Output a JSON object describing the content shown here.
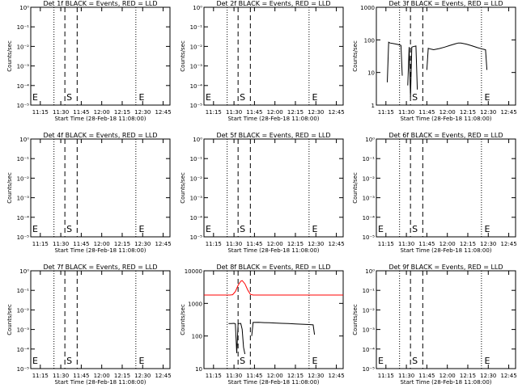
{
  "xticks": [
    "11:15",
    "11:30",
    "11:45",
    "12:00",
    "12:15",
    "12:30",
    "12:45"
  ],
  "xlabel": "Start Time (28-Feb-18 11:08:00)",
  "ylabel": "Counts/sec",
  "chart_data": [
    {
      "type": "line",
      "title": "Det 1f BLACK = Events, RED = LLD",
      "yscale": "log",
      "ylim": [
        1,
        10000
      ],
      "xlim": [
        "11:08",
        "12:50"
      ],
      "yticks": [
        "10⁰",
        "10⁻¹",
        "10⁻²",
        "10⁻³",
        "10⁻⁴",
        "10⁻⁵"
      ],
      "markers": [
        {
          "label": "E",
          "time": "11:08"
        },
        {
          "label": "S",
          "time": "11:33"
        },
        {
          "label": "E",
          "time": "12:26"
        }
      ],
      "dotted": [
        "11:25",
        "12:25"
      ],
      "dashed": [
        "11:33",
        "11:42"
      ],
      "series": []
    },
    {
      "type": "line",
      "title": "Det 2f BLACK = Events, RED = LLD",
      "yscale": "log",
      "ylim": [
        1,
        10000
      ],
      "xlim": [
        "11:08",
        "12:50"
      ],
      "yticks": [
        "10⁰",
        "10⁻¹",
        "10⁻²",
        "10⁻³",
        "10⁻⁴",
        "10⁻⁵"
      ],
      "markers": [
        {
          "label": "E",
          "time": "11:08"
        },
        {
          "label": "S",
          "time": "11:33"
        },
        {
          "label": "E",
          "time": "12:26"
        }
      ],
      "dotted": [
        "11:25",
        "12:25"
      ],
      "dashed": [
        "11:33",
        "11:42"
      ],
      "series": []
    },
    {
      "type": "line",
      "title": "Det 3f BLACK = Events, RED = LLD",
      "yscale": "log",
      "ylim": [
        1,
        1000
      ],
      "xlim": [
        "11:08",
        "12:50"
      ],
      "yticks": [
        "1000",
        "100",
        "10",
        "1"
      ],
      "markers": [
        {
          "label": "S",
          "time": "11:33"
        },
        {
          "label": "E",
          "time": "12:26"
        }
      ],
      "dotted": [
        "11:25",
        "12:25"
      ],
      "dashed": [
        "11:33",
        "11:42"
      ],
      "series": [
        {
          "color": "#000000",
          "segments": [
            [
              [
                "11:16",
                5
              ],
              [
                "11:17",
                85
              ],
              [
                "11:18",
                80
              ],
              [
                "11:20",
                78
              ],
              [
                "11:22",
                75
              ],
              [
                "11:24",
                72
              ],
              [
                "11:26",
                68
              ],
              [
                "11:27",
                8
              ]
            ],
            [
              [
                "11:31",
                4
              ],
              [
                "11:32",
                60
              ],
              [
                "11:33",
                1.8
              ],
              [
                "11:34",
                60
              ],
              [
                "11:35",
                62
              ],
              [
                "11:37",
                65
              ],
              [
                "11:38",
                3
              ]
            ],
            [
              [
                "11:45",
                12
              ],
              [
                "11:46",
                55
              ],
              [
                "11:48",
                52
              ],
              [
                "11:50",
                50
              ],
              [
                "11:54",
                54
              ],
              [
                "11:58",
                60
              ],
              [
                "12:02",
                68
              ],
              [
                "12:06",
                76
              ],
              [
                "12:08",
                80
              ],
              [
                "12:10",
                80
              ],
              [
                "12:14",
                74
              ],
              [
                "12:18",
                66
              ],
              [
                "12:22",
                58
              ],
              [
                "12:26",
                52
              ],
              [
                "12:28",
                50
              ],
              [
                "12:29",
                12
              ]
            ]
          ]
        }
      ]
    },
    {
      "type": "line",
      "title": "Det 4f BLACK = Events, RED = LLD",
      "yscale": "log",
      "ylim": [
        1,
        10000
      ],
      "xlim": [
        "11:08",
        "12:50"
      ],
      "yticks": [
        "10⁰",
        "10⁻¹",
        "10⁻²",
        "10⁻³",
        "10⁻⁴",
        "10⁻⁵"
      ],
      "markers": [
        {
          "label": "E",
          "time": "11:08"
        },
        {
          "label": "S",
          "time": "11:33"
        },
        {
          "label": "E",
          "time": "12:26"
        }
      ],
      "dotted": [
        "11:25",
        "12:25"
      ],
      "dashed": [
        "11:33",
        "11:42"
      ],
      "series": []
    },
    {
      "type": "line",
      "title": "Det 5f BLACK = Events, RED = LLD",
      "yscale": "log",
      "ylim": [
        1,
        10000
      ],
      "xlim": [
        "11:08",
        "12:50"
      ],
      "yticks": [
        "10⁰",
        "10⁻¹",
        "10⁻²",
        "10⁻³",
        "10⁻⁴",
        "10⁻⁵"
      ],
      "markers": [
        {
          "label": "E",
          "time": "11:08"
        },
        {
          "label": "S",
          "time": "11:33"
        },
        {
          "label": "E",
          "time": "12:26"
        }
      ],
      "dotted": [
        "11:25",
        "12:25"
      ],
      "dashed": [
        "11:33",
        "11:42"
      ],
      "series": []
    },
    {
      "type": "line",
      "title": "Det 6f BLACK = Events, RED = LLD",
      "yscale": "log",
      "ylim": [
        1,
        10000
      ],
      "xlim": [
        "11:08",
        "12:50"
      ],
      "yticks": [
        "10⁰",
        "10⁻¹",
        "10⁻²",
        "10⁻³",
        "10⁻⁴",
        "10⁻⁵"
      ],
      "markers": [
        {
          "label": "E",
          "time": "11:08"
        },
        {
          "label": "S",
          "time": "11:33"
        },
        {
          "label": "E",
          "time": "12:26"
        }
      ],
      "dotted": [
        "11:25",
        "12:25"
      ],
      "dashed": [
        "11:33",
        "11:42"
      ],
      "series": []
    },
    {
      "type": "line",
      "title": "Det 7f BLACK = Events, RED = LLD",
      "yscale": "log",
      "ylim": [
        1,
        10000
      ],
      "xlim": [
        "11:08",
        "12:50"
      ],
      "yticks": [
        "10⁰",
        "10⁻¹",
        "10⁻²",
        "10⁻³",
        "10⁻⁴",
        "10⁻⁵"
      ],
      "markers": [
        {
          "label": "E",
          "time": "11:08"
        },
        {
          "label": "S",
          "time": "11:33"
        },
        {
          "label": "E",
          "time": "12:26"
        }
      ],
      "dotted": [
        "11:25",
        "12:25"
      ],
      "dashed": [
        "11:33",
        "11:42"
      ],
      "series": []
    },
    {
      "type": "line",
      "title": "Det 8f BLACK = Events, RED = LLD",
      "yscale": "log",
      "ylim": [
        10,
        10000
      ],
      "xlim": [
        "11:08",
        "12:50"
      ],
      "yticks": [
        "10000",
        "1000",
        "100",
        "10"
      ],
      "markers": [
        {
          "label": "S",
          "time": "11:33"
        },
        {
          "label": "E",
          "time": "12:26"
        }
      ],
      "dotted": [
        "11:25",
        "12:25"
      ],
      "dashed": [
        "11:33",
        "11:42"
      ],
      "series": [
        {
          "color": "#ff0000",
          "segments": [
            [
              [
                "11:08",
                1800
              ],
              [
                "11:27",
                1800
              ],
              [
                "11:29",
                1850
              ],
              [
                "11:31",
                2300
              ],
              [
                "11:33",
                3600
              ],
              [
                "11:35",
                4800
              ],
              [
                "11:36",
                5000
              ],
              [
                "11:38",
                4000
              ],
              [
                "11:40",
                2600
              ],
              [
                "11:42",
                1900
              ],
              [
                "11:44",
                1800
              ],
              [
                "12:50",
                1800
              ]
            ]
          ]
        },
        {
          "color": "#000000",
          "segments": [
            [
              [
                "11:26",
                240
              ],
              [
                "11:28",
                240
              ],
              [
                "11:30",
                245
              ],
              [
                "11:31",
                238
              ],
              [
                "11:32",
                30
              ],
              [
                "11:33",
                240
              ],
              [
                "11:35",
                243
              ],
              [
                "11:36",
                160
              ],
              [
                "11:37",
                45
              ],
              [
                "11:38",
                28
              ]
            ],
            [
              [
                "11:43",
                100
              ],
              [
                "11:44",
                260
              ],
              [
                "11:48",
                262
              ],
              [
                "11:52",
                258
              ],
              [
                "11:56",
                255
              ],
              [
                "12:00",
                250
              ],
              [
                "12:05",
                245
              ],
              [
                "12:10",
                240
              ],
              [
                "12:15",
                235
              ],
              [
                "12:20",
                230
              ],
              [
                "12:25",
                225
              ],
              [
                "12:28",
                220
              ],
              [
                "12:29",
                110
              ]
            ]
          ]
        }
      ]
    },
    {
      "type": "line",
      "title": "Det 9f BLACK = Events, RED = LLD",
      "yscale": "log",
      "ylim": [
        1,
        10000
      ],
      "xlim": [
        "11:08",
        "12:50"
      ],
      "yticks": [
        "10⁰",
        "10⁻¹",
        "10⁻²",
        "10⁻³",
        "10⁻⁴",
        "10⁻⁵"
      ],
      "markers": [
        {
          "label": "E",
          "time": "11:08"
        },
        {
          "label": "S",
          "time": "11:33"
        },
        {
          "label": "E",
          "time": "12:26"
        }
      ],
      "dotted": [
        "11:25",
        "12:25"
      ],
      "dashed": [
        "11:33",
        "11:42"
      ],
      "series": []
    }
  ]
}
